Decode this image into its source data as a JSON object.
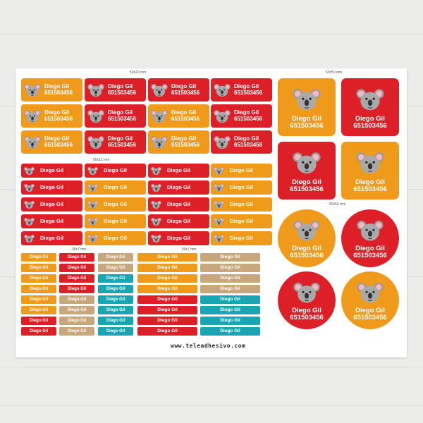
{
  "label": {
    "name": "Diego Gil",
    "phone": "651503456"
  },
  "sizes": {
    "large": "50x20 mm",
    "medium": "50x12 mm",
    "small_narrow": "30x7 mm",
    "small_wide": "50x7 mm",
    "square": "50x50 mm",
    "round": "50x50 mm"
  },
  "website": "www.teleadhesivo.com",
  "colors": {
    "orange": "#ef9a1a",
    "red": "#dd2027",
    "tan": "#c9a77c",
    "teal": "#1aa5b3",
    "koala": "koala-icon"
  }
}
